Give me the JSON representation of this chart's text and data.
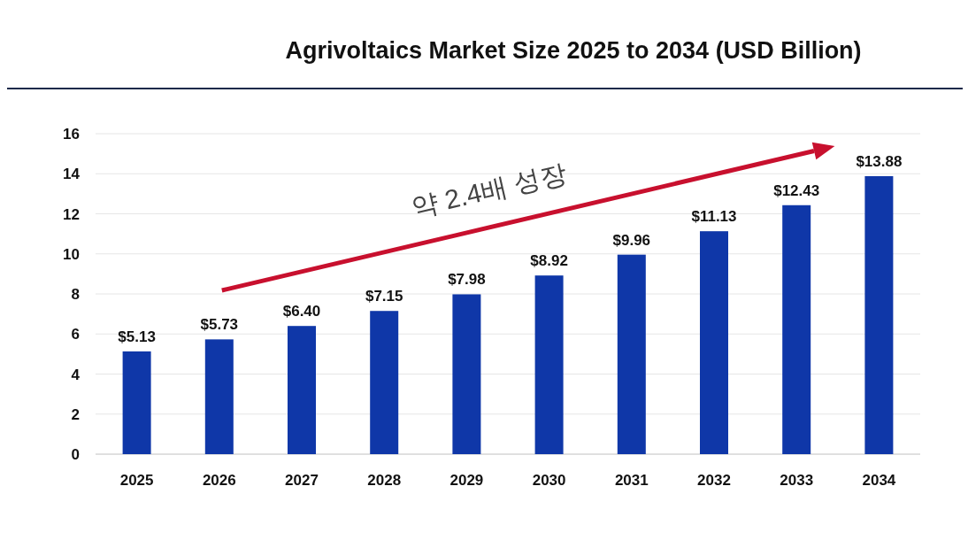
{
  "chart_data": {
    "type": "bar",
    "title": "Agrivoltaics Market Size 2025 to 2034 (USD Billion)",
    "categories": [
      "2025",
      "2026",
      "2027",
      "2028",
      "2029",
      "2030",
      "2031",
      "2032",
      "2033",
      "2034"
    ],
    "values": [
      5.13,
      5.73,
      6.4,
      7.15,
      7.98,
      8.92,
      9.96,
      11.13,
      12.43,
      13.88
    ],
    "value_labels": [
      "$5.13",
      "$5.73",
      "$6.40",
      "$7.15",
      "$7.98",
      "$8.92",
      "$9.96",
      "$11.13",
      "$12.43",
      "$13.88"
    ],
    "color": "#0f37a8",
    "ylim": [
      0,
      16
    ],
    "yticks": [
      0,
      2,
      4,
      6,
      8,
      10,
      12,
      14,
      16
    ],
    "grid": "y",
    "annotations": [
      "약 2.4배 성장"
    ]
  }
}
